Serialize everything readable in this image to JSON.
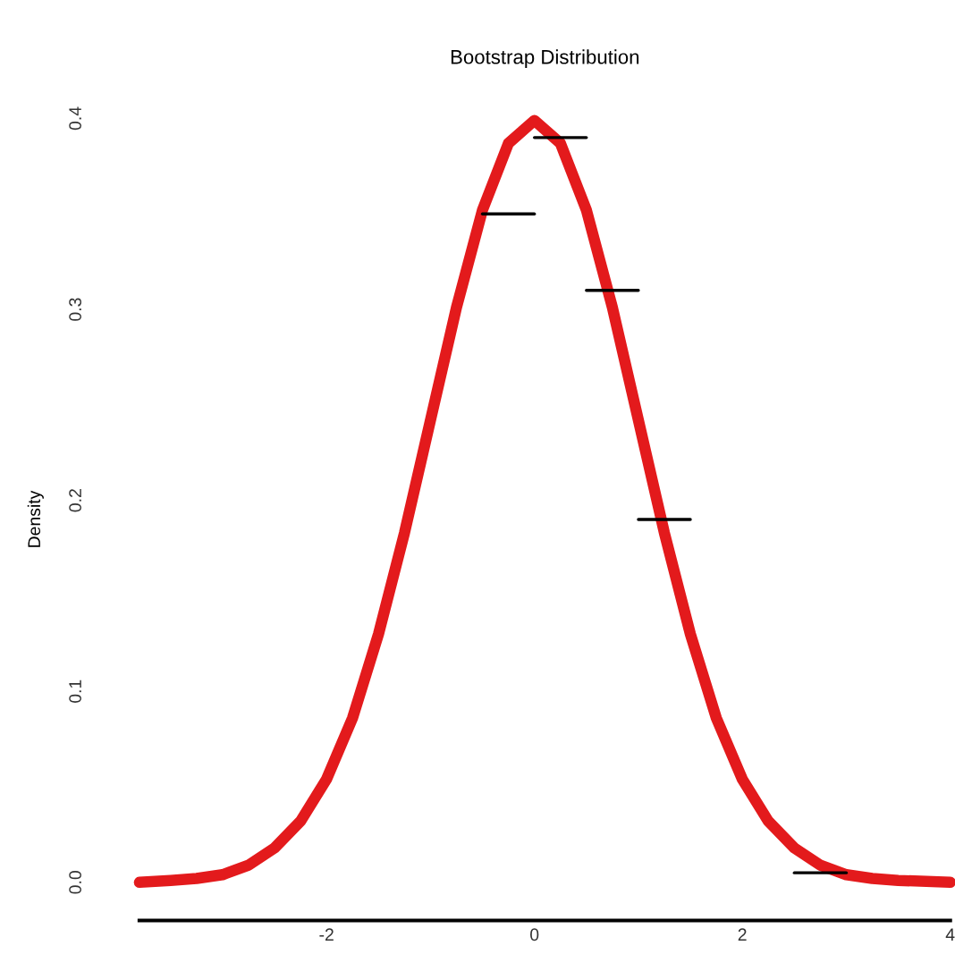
{
  "chart_data": {
    "type": "line",
    "title": "Bootstrap Distribution",
    "ylabel": "Density",
    "xlim": [
      -3.8,
      4.0
    ],
    "ylim": [
      -0.02,
      0.4
    ],
    "xticks": [
      -2,
      0,
      2,
      4
    ],
    "yticks": [
      {
        "value": 0.0,
        "label": "0.0"
      },
      0.1,
      0.2,
      0.3,
      0.4
    ],
    "grid": false,
    "legend": false,
    "marker": "none",
    "line_style": "solid",
    "series": [
      {
        "color": "#e31a1c",
        "x": [
          -3.8,
          -3.5,
          -3.25,
          -3.0,
          -2.75,
          -2.5,
          -2.25,
          -2.0,
          -1.75,
          -1.5,
          -1.25,
          -1.0,
          -0.75,
          -0.5,
          -0.25,
          0.0,
          0.25,
          0.5,
          0.75,
          1.0,
          1.25,
          1.5,
          1.75,
          2.0,
          2.25,
          2.5,
          2.75,
          3.0,
          3.25,
          3.5,
          4.0
        ],
        "values": [
          0.0,
          0.001,
          0.002,
          0.004,
          0.009,
          0.018,
          0.032,
          0.054,
          0.086,
          0.13,
          0.183,
          0.242,
          0.301,
          0.352,
          0.387,
          0.399,
          0.387,
          0.352,
          0.301,
          0.242,
          0.183,
          0.13,
          0.086,
          0.054,
          0.032,
          0.018,
          0.009,
          0.004,
          0.002,
          0.001,
          0.0
        ]
      },
      {
        "color": "#000000",
        "x": [
          -0.5,
          0.0
        ],
        "values": [
          0.35,
          0.35
        ]
      },
      {
        "color": "#000000",
        "x": [
          0.0,
          0.5
        ],
        "values": [
          0.39,
          0.39
        ]
      },
      {
        "color": "#000000",
        "x": [
          0.5,
          1.0
        ],
        "values": [
          0.31,
          0.31
        ]
      },
      {
        "color": "#000000",
        "x": [
          1.0,
          1.5
        ],
        "values": [
          0.19,
          0.19
        ]
      },
      {
        "color": "#000000",
        "x": [
          2.5,
          3.0
        ],
        "values": [
          0.005,
          0.005
        ]
      }
    ]
  }
}
